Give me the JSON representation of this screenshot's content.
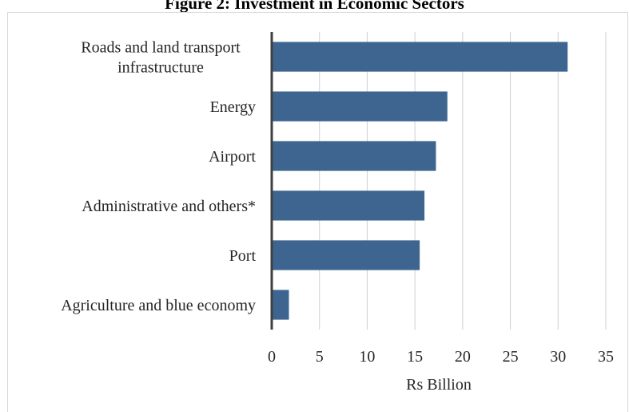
{
  "chart_data": {
    "type": "bar",
    "orientation": "horizontal",
    "title": "Figure 2: Investment in Economic Sectors",
    "xlabel": "Rs Billion",
    "ylabel": "",
    "xlim": [
      0,
      35
    ],
    "x_ticks": [
      0,
      5,
      10,
      15,
      20,
      25,
      30,
      35
    ],
    "grid": "vertical",
    "legend": "none",
    "bar_color": "#3E6590",
    "categories": [
      [
        "Roads and land transport",
        "infrastructure"
      ],
      [
        "Energy"
      ],
      [
        "Airport"
      ],
      [
        "Administrative and others*"
      ],
      [
        "Port"
      ],
      [
        "Agriculture and blue economy"
      ]
    ],
    "values": [
      31.0,
      18.4,
      17.2,
      16.0,
      15.5,
      1.8
    ]
  }
}
